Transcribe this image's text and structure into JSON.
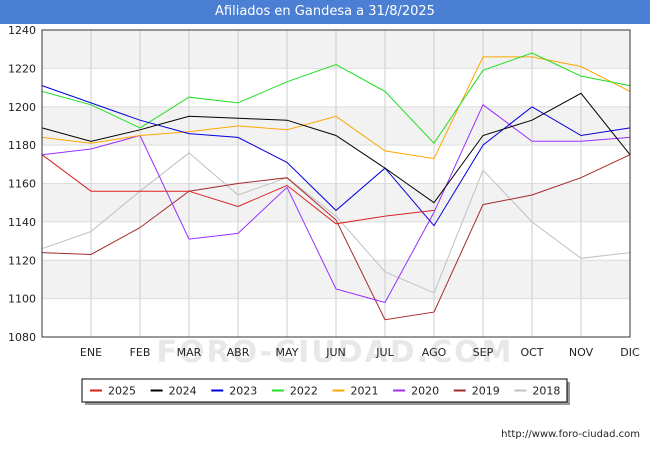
{
  "title": "Afiliados en Gandesa a 31/8/2025",
  "footer": "http://www.foro-ciudad.com",
  "watermark": "FORO-CIUDAD.COM",
  "chart_data": {
    "type": "line",
    "title": "Afiliados en Gandesa a 31/8/2025",
    "categories": [
      "",
      "ENE",
      "FEB",
      "MAR",
      "ABR",
      "MAY",
      "JUN",
      "JUL",
      "AGO",
      "SEP",
      "OCT",
      "NOV",
      "DIC"
    ],
    "ylim": [
      1080,
      1240
    ],
    "yticks": [
      1080,
      1100,
      1120,
      1140,
      1160,
      1180,
      1200,
      1220,
      1240
    ],
    "grid": true,
    "legend_position": "bottom",
    "series": [
      {
        "name": "2025",
        "color": "#dd2222",
        "values": [
          1175,
          1156,
          1156,
          1156,
          1148,
          1159,
          1139,
          1143,
          1146,
          null,
          null,
          null,
          null
        ]
      },
      {
        "name": "2024",
        "color": "#000000",
        "values": [
          1189,
          1182,
          1188,
          1195,
          1194,
          1193,
          1185,
          1168,
          1150,
          1185,
          1193,
          1207,
          1175
        ]
      },
      {
        "name": "2023",
        "color": "#0000dd",
        "values": [
          1211,
          1202,
          1193,
          1186,
          1184,
          1171,
          1146,
          1168,
          1138,
          1180,
          1200,
          1185,
          1189
        ]
      },
      {
        "name": "2022",
        "color": "#22dd22",
        "values": [
          1208,
          1201,
          1189,
          1205,
          1202,
          1213,
          1222,
          1208,
          1181,
          1219,
          1228,
          1216,
          1211
        ]
      },
      {
        "name": "2021",
        "color": "#ffa500",
        "values": [
          1184,
          1181,
          1185,
          1187,
          1190,
          1188,
          1195,
          1177,
          1173,
          1226,
          1226,
          1221,
          1208
        ]
      },
      {
        "name": "2020",
        "color": "#9b30ff",
        "values": [
          1175,
          1178,
          1185,
          1131,
          1134,
          1158,
          1105,
          1098,
          1145,
          1201,
          1182,
          1182,
          1184
        ]
      },
      {
        "name": "2019",
        "color": "#a52a2a",
        "values": [
          1124,
          1123,
          1137,
          1156,
          1160,
          1163,
          1141,
          1089,
          1093,
          1149,
          1154,
          1163,
          1175
        ]
      },
      {
        "name": "2018",
        "color": "#c0c0c0",
        "values": [
          1126,
          1135,
          1156,
          1176,
          1154,
          1163,
          1143,
          1114,
          1103,
          1167,
          1140,
          1121,
          1124
        ]
      }
    ]
  }
}
